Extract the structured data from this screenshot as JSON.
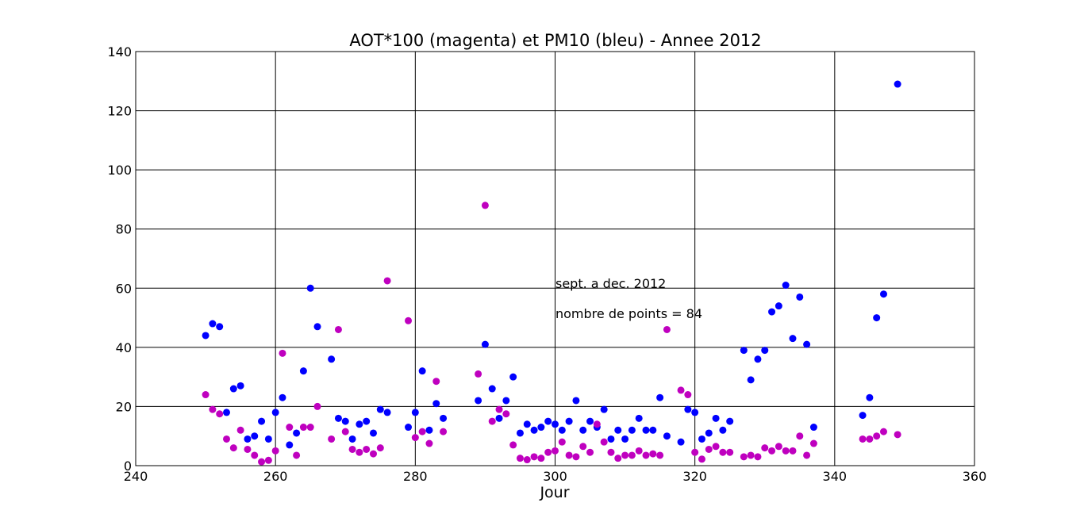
{
  "chart_data": {
    "type": "scatter",
    "title": "AOT*100 (magenta) et PM10 (bleu) - Annee 2012",
    "xlabel": "Jour",
    "ylabel": "",
    "xlim": [
      240,
      360
    ],
    "ylim": [
      0,
      140
    ],
    "xticks": [
      "240",
      "260",
      "280",
      "300",
      "320",
      "340",
      "360"
    ],
    "yticks": [
      "0",
      "20",
      "40",
      "60",
      "80",
      "100",
      "120",
      "140"
    ],
    "grid": true,
    "annotations": [
      "sept. a dec. 2012",
      "nombre de points = 84"
    ],
    "series": [
      {
        "color": "#0000ff",
        "points": [
          [
            250,
            44
          ],
          [
            251,
            48
          ],
          [
            252,
            47
          ],
          [
            253,
            18
          ],
          [
            254,
            26
          ],
          [
            255,
            27
          ],
          [
            256,
            9
          ],
          [
            257,
            10
          ],
          [
            258,
            15
          ],
          [
            259,
            9
          ],
          [
            260,
            18
          ],
          [
            261,
            23
          ],
          [
            262,
            7
          ],
          [
            263,
            11
          ],
          [
            264,
            32
          ],
          [
            265,
            60
          ],
          [
            266,
            47
          ],
          [
            268,
            36
          ],
          [
            269,
            16
          ],
          [
            270,
            15
          ],
          [
            271,
            9
          ],
          [
            272,
            14
          ],
          [
            273,
            15
          ],
          [
            274,
            11
          ],
          [
            275,
            19
          ],
          [
            276,
            18
          ],
          [
            279,
            13
          ],
          [
            280,
            18
          ],
          [
            281,
            32
          ],
          [
            282,
            12
          ],
          [
            283,
            21
          ],
          [
            284,
            16
          ],
          [
            289,
            22
          ],
          [
            290,
            41
          ],
          [
            291,
            26
          ],
          [
            292,
            16
          ],
          [
            293,
            22
          ],
          [
            294,
            30
          ],
          [
            295,
            11
          ],
          [
            296,
            14
          ],
          [
            297,
            12
          ],
          [
            298,
            13
          ],
          [
            299,
            15
          ],
          [
            300,
            14
          ],
          [
            301,
            12
          ],
          [
            302,
            15
          ],
          [
            303,
            22
          ],
          [
            304,
            12
          ],
          [
            305,
            15
          ],
          [
            306,
            13
          ],
          [
            307,
            19
          ],
          [
            308,
            9
          ],
          [
            309,
            12
          ],
          [
            310,
            9
          ],
          [
            311,
            12
          ],
          [
            312,
            16
          ],
          [
            313,
            12
          ],
          [
            314,
            12
          ],
          [
            315,
            23
          ],
          [
            316,
            10
          ],
          [
            318,
            8
          ],
          [
            319,
            19
          ],
          [
            320,
            18
          ],
          [
            321,
            9
          ],
          [
            322,
            11
          ],
          [
            323,
            16
          ],
          [
            324,
            12
          ],
          [
            325,
            15
          ],
          [
            327,
            39
          ],
          [
            328,
            29
          ],
          [
            329,
            36
          ],
          [
            330,
            39
          ],
          [
            331,
            52
          ],
          [
            332,
            54
          ],
          [
            333,
            61
          ],
          [
            334,
            43
          ],
          [
            335,
            57
          ],
          [
            336,
            41
          ],
          [
            337,
            13
          ],
          [
            344,
            17
          ],
          [
            345,
            23
          ],
          [
            346,
            50
          ],
          [
            347,
            58
          ],
          [
            349,
            129
          ]
        ]
      },
      {
        "color": "#bf00bf",
        "points": [
          [
            250,
            24
          ],
          [
            251,
            19
          ],
          [
            252,
            17.5
          ],
          [
            253,
            9
          ],
          [
            254,
            6
          ],
          [
            255,
            12
          ],
          [
            256,
            5.5
          ],
          [
            257,
            3.5
          ],
          [
            258,
            1.3
          ],
          [
            259,
            1.8
          ],
          [
            260,
            5
          ],
          [
            261,
            38
          ],
          [
            262,
            13
          ],
          [
            263,
            3.5
          ],
          [
            264,
            13
          ],
          [
            265,
            13
          ],
          [
            266,
            20
          ],
          [
            268,
            9
          ],
          [
            269,
            46
          ],
          [
            270,
            11.5
          ],
          [
            271,
            5.5
          ],
          [
            272,
            4.5
          ],
          [
            273,
            5.5
          ],
          [
            274,
            4
          ],
          [
            275,
            6
          ],
          [
            276,
            62.5
          ],
          [
            279,
            49
          ],
          [
            280,
            9.5
          ],
          [
            281,
            11.5
          ],
          [
            282,
            7.5
          ],
          [
            283,
            28.5
          ],
          [
            284,
            11.5
          ],
          [
            289,
            31
          ],
          [
            290,
            88
          ],
          [
            291,
            15
          ],
          [
            292,
            19
          ],
          [
            293,
            17.5
          ],
          [
            294,
            7
          ],
          [
            295,
            2.5
          ],
          [
            296,
            2
          ],
          [
            297,
            3
          ],
          [
            298,
            2.5
          ],
          [
            299,
            4.5
          ],
          [
            300,
            5
          ],
          [
            301,
            8
          ],
          [
            302,
            3.5
          ],
          [
            303,
            3
          ],
          [
            304,
            6.5
          ],
          [
            305,
            4.5
          ],
          [
            306,
            14
          ],
          [
            307,
            8
          ],
          [
            308,
            4.5
          ],
          [
            309,
            2.5
          ],
          [
            310,
            3.5
          ],
          [
            311,
            3.5
          ],
          [
            312,
            5
          ],
          [
            313,
            3.5
          ],
          [
            314,
            4
          ],
          [
            315,
            3.5
          ],
          [
            316,
            46
          ],
          [
            318,
            25.5
          ],
          [
            319,
            24
          ],
          [
            320,
            4.5
          ],
          [
            321,
            2.2
          ],
          [
            322,
            5.5
          ],
          [
            323,
            6.5
          ],
          [
            324,
            4.5
          ],
          [
            325,
            4.5
          ],
          [
            327,
            3
          ],
          [
            328,
            3.5
          ],
          [
            329,
            3
          ],
          [
            330,
            6
          ],
          [
            331,
            5
          ],
          [
            332,
            6.5
          ],
          [
            333,
            5
          ],
          [
            334,
            5
          ],
          [
            335,
            10
          ],
          [
            336,
            3.5
          ],
          [
            337,
            7.5
          ],
          [
            344,
            9
          ],
          [
            345,
            9
          ],
          [
            346,
            10
          ],
          [
            347,
            11.5
          ],
          [
            349,
            10.5
          ]
        ]
      }
    ]
  }
}
